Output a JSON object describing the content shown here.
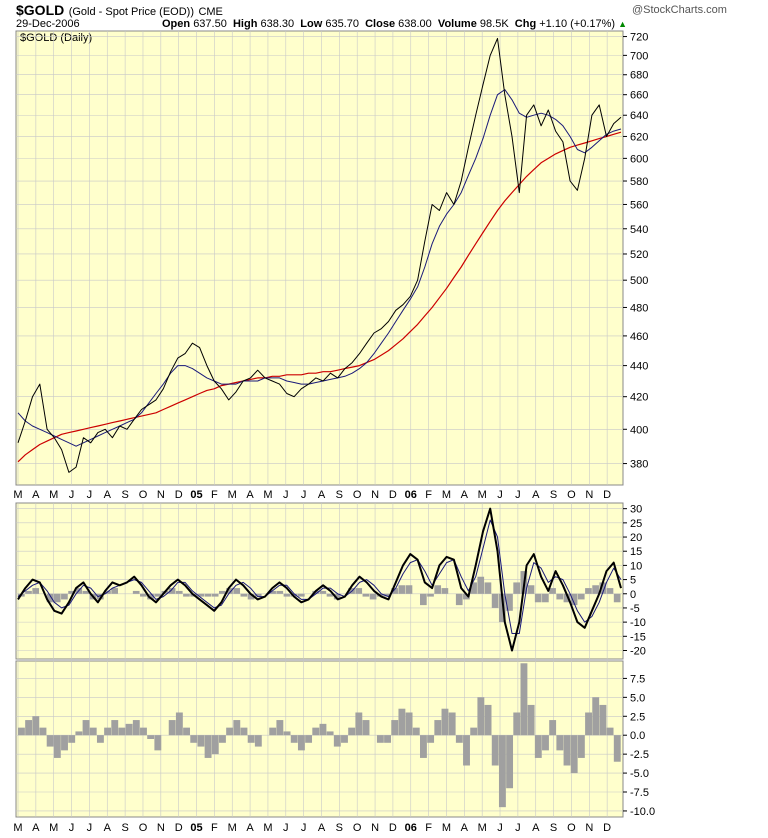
{
  "header": {
    "symbol": "$GOLD",
    "description": "(Gold - Spot Price (EOD))",
    "exchange": "CME",
    "watermark": "@StockCharts.com",
    "date": "29-Dec-2006",
    "quote": {
      "open_label": "Open",
      "open": "637.50",
      "high_label": "High",
      "high": "638.30",
      "low_label": "Low",
      "low": "635.70",
      "close_label": "Close",
      "close": "638.00",
      "volume_label": "Volume",
      "volume": "98.5K",
      "chg_label": "Chg",
      "chg": "+1.10 (+0.17%)"
    },
    "panel_label": "$GOLD (Daily)"
  },
  "colors": {
    "panel_bg": "#ffffcc",
    "price_line": "#000000",
    "ma_short": "#1a1a7a",
    "ma_long": "#cc0000",
    "histogram": "#a0a0a0",
    "grid": "#c8c8c8",
    "up_arrow": "#008800"
  },
  "chart_data": [
    {
      "type": "line",
      "name": "price",
      "x_tick_labels": [
        "M",
        "A",
        "M",
        "J",
        "J",
        "A",
        "S",
        "O",
        "N",
        "D",
        "05",
        "F",
        "M",
        "A",
        "M",
        "J",
        "J",
        "A",
        "S",
        "O",
        "N",
        "D",
        "06",
        "F",
        "M",
        "A",
        "M",
        "J",
        "J",
        "A",
        "S",
        "O",
        "N",
        "D"
      ],
      "y_ticks": [
        380,
        400,
        420,
        440,
        460,
        480,
        500,
        520,
        540,
        560,
        580,
        600,
        620,
        640,
        660,
        680,
        700,
        720
      ],
      "ylim": [
        368,
        726
      ],
      "log_scale": true,
      "price": [
        392,
        405,
        420,
        428,
        400,
        395,
        388,
        375,
        378,
        395,
        392,
        398,
        400,
        395,
        402,
        400,
        406,
        412,
        415,
        418,
        425,
        436,
        445,
        448,
        455,
        452,
        440,
        430,
        425,
        418,
        423,
        430,
        432,
        437,
        432,
        430,
        428,
        422,
        420,
        425,
        428,
        432,
        430,
        435,
        432,
        438,
        442,
        448,
        455,
        462,
        465,
        470,
        478,
        482,
        488,
        500,
        530,
        560,
        555,
        570,
        560,
        580,
        610,
        640,
        670,
        700,
        718,
        660,
        620,
        570,
        640,
        650,
        630,
        645,
        625,
        615,
        580,
        572,
        600,
        640,
        650,
        620,
        632,
        638
      ],
      "ma_50": [
        410,
        405,
        402,
        400,
        398,
        396,
        394,
        392,
        390,
        392,
        394,
        396,
        398,
        400,
        402,
        404,
        406,
        410,
        416,
        422,
        428,
        435,
        440,
        440,
        438,
        435,
        432,
        430,
        428,
        428,
        428,
        430,
        430,
        430,
        432,
        432,
        432,
        430,
        429,
        428,
        428,
        429,
        430,
        431,
        432,
        433,
        435,
        438,
        442,
        448,
        455,
        462,
        470,
        478,
        486,
        495,
        510,
        528,
        542,
        552,
        560,
        570,
        585,
        600,
        618,
        640,
        660,
        665,
        655,
        642,
        638,
        640,
        642,
        640,
        636,
        630,
        620,
        608,
        605,
        610,
        616,
        622,
        625,
        627
      ],
      "ma_200": [
        381,
        385,
        388,
        391,
        393,
        395,
        397,
        398,
        399,
        400,
        401,
        402,
        403,
        404,
        405,
        406,
        407,
        408,
        409,
        410,
        412,
        414,
        416,
        418,
        420,
        422,
        424,
        425,
        427,
        428,
        429,
        430,
        431,
        432,
        432,
        433,
        433,
        434,
        434,
        434,
        435,
        435,
        436,
        436,
        437,
        438,
        439,
        440,
        442,
        444,
        447,
        450,
        454,
        458,
        463,
        468,
        474,
        480,
        487,
        494,
        502,
        510,
        519,
        528,
        537,
        546,
        555,
        563,
        570,
        577,
        584,
        590,
        596,
        600,
        604,
        607,
        610,
        612,
        614,
        616,
        618,
        620,
        622,
        624
      ]
    },
    {
      "type": "line",
      "name": "momentum",
      "y_ticks": [
        -20,
        -15,
        -10,
        -5,
        0,
        5,
        10,
        15,
        20,
        25,
        30
      ],
      "ylim": [
        -23,
        32
      ],
      "line": [
        -2,
        2,
        5,
        4,
        -2,
        -6,
        -7,
        -3,
        2,
        4,
        0,
        -3,
        1,
        4,
        3,
        4,
        6,
        3,
        -1,
        -3,
        0,
        3,
        5,
        3,
        0,
        -2,
        -4,
        -6,
        -3,
        2,
        5,
        3,
        0,
        -2,
        -1,
        2,
        4,
        2,
        -1,
        -3,
        -2,
        1,
        3,
        1,
        -2,
        -1,
        3,
        6,
        4,
        1,
        -1,
        -2,
        4,
        10,
        14,
        12,
        4,
        2,
        10,
        13,
        12,
        2,
        -1,
        10,
        22,
        30,
        15,
        -10,
        -20,
        -10,
        10,
        14,
        6,
        1,
        8,
        3,
        -3,
        -10,
        -12,
        -6,
        0,
        8,
        11,
        2
      ],
      "signal": [
        -1,
        1,
        3,
        4,
        1,
        -3,
        -5,
        -4,
        0,
        3,
        2,
        -1,
        0,
        2,
        3,
        4,
        5,
        4,
        1,
        -2,
        -1,
        1,
        4,
        4,
        1,
        -1,
        -3,
        -5,
        -4,
        0,
        3,
        4,
        2,
        -1,
        -1,
        1,
        3,
        3,
        0,
        -2,
        -2,
        0,
        2,
        2,
        0,
        -1,
        1,
        4,
        5,
        3,
        0,
        -1,
        2,
        7,
        11,
        12,
        8,
        3,
        7,
        11,
        12,
        6,
        1,
        6,
        16,
        26,
        20,
        0,
        -14,
        -14,
        2,
        11,
        9,
        4,
        6,
        5,
        0,
        -6,
        -10,
        -8,
        -3,
        4,
        9,
        5
      ],
      "histogram": [
        -1,
        1,
        2,
        0,
        -3,
        -3,
        -2,
        1,
        2,
        1,
        -2,
        -2,
        1,
        2,
        0,
        0,
        1,
        -1,
        -2,
        -1,
        1,
        2,
        1,
        -1,
        -1,
        -1,
        -1,
        -1,
        1,
        2,
        2,
        -1,
        -2,
        -1,
        0,
        1,
        1,
        -1,
        -1,
        -1,
        0,
        1,
        1,
        -1,
        -2,
        0,
        2,
        2,
        -1,
        -2,
        -1,
        -1,
        2,
        3,
        3,
        0,
        -4,
        -1,
        3,
        2,
        0,
        -4,
        -2,
        4,
        6,
        4,
        -5,
        -10,
        -6,
        4,
        8,
        3,
        -3,
        -3,
        2,
        -2,
        -3,
        -4,
        -2,
        2,
        3,
        4,
        2,
        -3
      ]
    },
    {
      "type": "bar",
      "name": "oscillator",
      "y_ticks": [
        -10.0,
        -7.5,
        -5.0,
        -2.5,
        0.0,
        2.5,
        5.0,
        7.5
      ],
      "ylim": [
        -10.8,
        9.8
      ],
      "values": [
        1,
        2,
        2.5,
        1,
        -1.5,
        -3,
        -2,
        -1,
        0.5,
        2,
        1,
        -1,
        1,
        2,
        1,
        1.5,
        2,
        1,
        -0.5,
        -2,
        0,
        2,
        3,
        1,
        -1,
        -1.5,
        -3,
        -2.5,
        -1,
        1,
        2,
        1,
        -1,
        -1.5,
        0,
        1,
        2,
        0.5,
        -1,
        -2,
        -1,
        1,
        1.5,
        0.5,
        -1.5,
        -1,
        1,
        3,
        2,
        0,
        -1,
        -1,
        2,
        3.5,
        3,
        1,
        -3,
        -1,
        2,
        3.5,
        3,
        -1,
        -4,
        1,
        5,
        4,
        -4,
        -9.5,
        -7,
        3,
        9.5,
        4,
        -3,
        -2,
        2,
        -2,
        -4,
        -5,
        -3,
        3,
        5,
        4,
        1,
        -3.5
      ]
    }
  ]
}
